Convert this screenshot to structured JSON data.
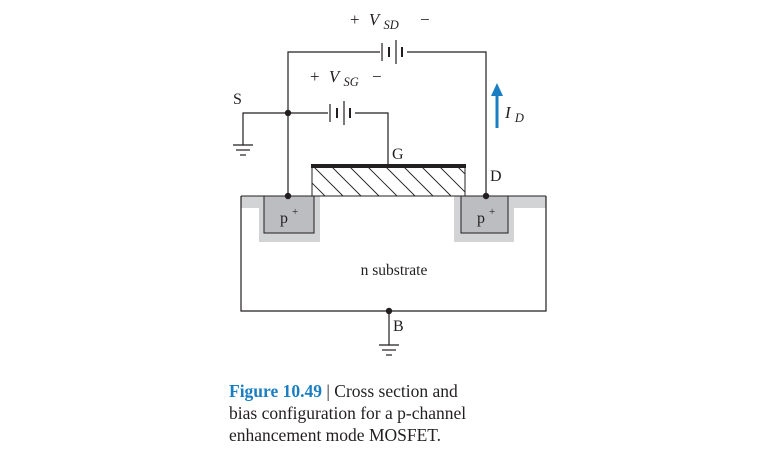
{
  "labels": {
    "vsd_plus": "+",
    "vsd_v": "V",
    "vsd_sub": "SD",
    "vsd_minus": "−",
    "vsg_plus": "+",
    "vsg_v": "V",
    "vsg_sub": "SG",
    "vsg_minus": "−",
    "source": "S",
    "gate": "G",
    "drain": "D",
    "bulk": "B",
    "id_i": "I",
    "id_sub": "D",
    "p_left": "p",
    "p_left_sup": "+",
    "p_right": "p",
    "p_right_sup": "+",
    "substrate": "n substrate"
  },
  "caption": {
    "number": "Figure 10.49",
    "separator": " | ",
    "line1": "Cross section and",
    "line2": "bias configuration for a p-channel",
    "line3": "enhancement mode MOSFET."
  },
  "colors": {
    "line": "#231f20",
    "accent": "#1a7ec2",
    "shade": "#d2d3d5",
    "pregion": "#bcbdc0"
  }
}
